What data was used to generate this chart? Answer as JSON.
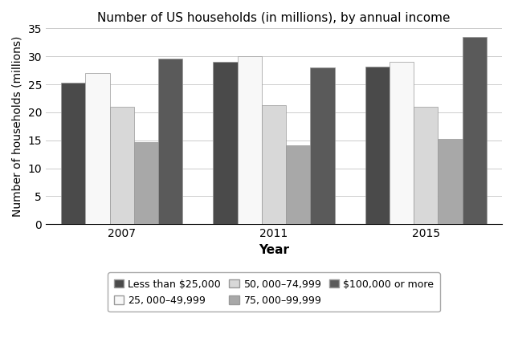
{
  "title": "Number of US households (in millions), by annual income",
  "xlabel": "Year",
  "ylabel": "Number of households (millions)",
  "years": [
    "2007",
    "2011",
    "2015"
  ],
  "categories": [
    "Less than $25,000",
    "$25,000–$49,999",
    "$50,000–$74,999",
    "$75,000–$99,999",
    "$100,000 or more"
  ],
  "values": {
    "Less than $25,000": [
      25.3,
      29.0,
      28.1
    ],
    "$25,000–$49,999": [
      27.0,
      30.0,
      29.0
    ],
    "$50,000–$74,999": [
      21.0,
      21.2,
      21.0
    ],
    "$75,000–$99,999": [
      14.7,
      14.1,
      15.2
    ],
    "$100,000 or more": [
      29.6,
      28.0,
      33.5
    ]
  },
  "colors": [
    "#4a4a4a",
    "#f8f8f8",
    "#d8d8d8",
    "#a8a8a8",
    "#5a5a5a"
  ],
  "bar_edgecolor": "#999999",
  "ylim": [
    0,
    35
  ],
  "yticks": [
    0,
    5,
    10,
    15,
    20,
    25,
    30,
    35
  ],
  "bar_width": 0.16,
  "legend_edgecolor": "#aaaaaa",
  "background_color": "#ffffff",
  "grid_color": "#cccccc",
  "title_fontsize": 11,
  "axis_label_fontsize": 11,
  "tick_fontsize": 10,
  "legend_fontsize": 9
}
